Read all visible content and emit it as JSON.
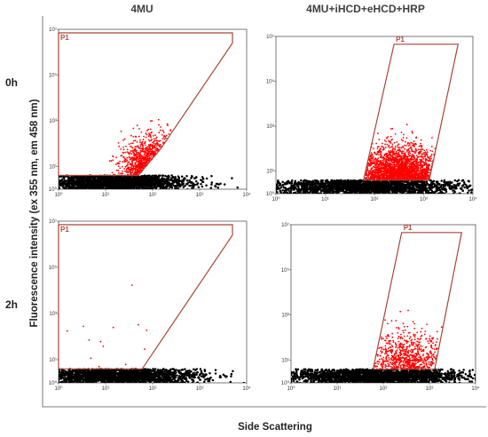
{
  "figure": {
    "columns": [
      "4MU",
      "4MU+iHCD+eHCD+HRP"
    ],
    "rows": [
      "0h",
      "2h"
    ],
    "ylabel": "Fluorescence intensity (ex 355 nm, em 458 nm)",
    "xlabel": "Side Scattering"
  },
  "chart_data": [
    {
      "type": "scatter",
      "condition": "4MU",
      "time": "0h",
      "xscale": "log",
      "yscale": "log",
      "xlim": [
        1,
        10000
      ],
      "ylim": [
        1,
        10000000
      ],
      "xticks": [
        "10⁰",
        "10¹",
        "10²",
        "10³",
        "10⁴"
      ],
      "yticks": [
        "10⁰",
        "10¹",
        "10³",
        "10⁵",
        "10⁷"
      ],
      "gate": {
        "label": "P1",
        "vertices": [
          [
            1,
            4
          ],
          [
            50,
            4
          ],
          [
            150,
            60
          ],
          [
            5000,
            2500000
          ],
          [
            5000,
            7000000
          ],
          [
            1,
            7000000
          ]
        ]
      },
      "populations": [
        {
          "name": "ungated",
          "color": "#000000",
          "xrange": [
            1,
            180
          ],
          "yrange": [
            1,
            4
          ],
          "density": "high"
        },
        {
          "name": "P1",
          "color": "#ff0000",
          "xrange": [
            40,
            400
          ],
          "yrange": [
            4,
            300
          ],
          "density": "medium"
        }
      ]
    },
    {
      "type": "scatter",
      "condition": "4MU+iHCD+eHCD+HRP",
      "time": "0h",
      "xscale": "log",
      "yscale": "log",
      "xlim": [
        1,
        10000
      ],
      "ylim": [
        1,
        10000000
      ],
      "xticks": [
        "10⁰",
        "10¹",
        "10²",
        "10³",
        "10⁴"
      ],
      "yticks": [
        "10⁰",
        "10¹",
        "10³",
        "10⁵",
        "10⁷"
      ],
      "gate": {
        "label": "P1",
        "vertices": [
          [
            60,
            4
          ],
          [
            1300,
            4
          ],
          [
            5000,
            4500000
          ],
          [
            250,
            4500000
          ]
        ]
      },
      "populations": [
        {
          "name": "ungated",
          "color": "#000000",
          "xrange": [
            2,
            1500
          ],
          "yrange": [
            1,
            4
          ],
          "density": "high"
        },
        {
          "name": "P1",
          "color": "#ff0000",
          "xrange": [
            80,
            1300
          ],
          "yrange": [
            4,
            250
          ],
          "density": "high"
        }
      ]
    },
    {
      "type": "scatter",
      "condition": "4MU",
      "time": "2h",
      "xscale": "log",
      "yscale": "log",
      "xlim": [
        1,
        10000
      ],
      "ylim": [
        1,
        10000000
      ],
      "xticks": [
        "10⁰",
        "10¹",
        "10²",
        "10³",
        "10⁴"
      ],
      "yticks": [
        "10⁰",
        "10¹",
        "10³",
        "10⁵",
        "10⁷"
      ],
      "gate": {
        "label": "P1",
        "vertices": [
          [
            1,
            4
          ],
          [
            60,
            4
          ],
          [
            5000,
            2500000
          ],
          [
            5000,
            7000000
          ],
          [
            1,
            7000000
          ]
        ]
      },
      "populations": [
        {
          "name": "ungated",
          "color": "#000000",
          "xrange": [
            1,
            300
          ],
          "yrange": [
            1,
            4
          ],
          "density": "high"
        },
        {
          "name": "P1",
          "color": "#ff0000",
          "xrange": [
            2,
            120
          ],
          "yrange": [
            4,
            1000
          ],
          "density": "sparse"
        }
      ]
    },
    {
      "type": "scatter",
      "condition": "4MU+iHCD+eHCD+HRP",
      "time": "2h",
      "xscale": "log",
      "yscale": "log",
      "xlim": [
        1,
        10000
      ],
      "ylim": [
        1,
        10000000
      ],
      "xticks": [
        "10⁰",
        "10¹",
        "10²",
        "10³",
        "10⁴"
      ],
      "yticks": [
        "10⁰",
        "10¹",
        "10³",
        "10⁵",
        "10⁷"
      ],
      "gate": {
        "label": "P1",
        "vertices": [
          [
            60,
            4
          ],
          [
            1300,
            4
          ],
          [
            5000,
            4500000
          ],
          [
            250,
            4500000
          ]
        ]
      },
      "populations": [
        {
          "name": "ungated",
          "color": "#000000",
          "xrange": [
            3,
            1500
          ],
          "yrange": [
            1,
            4
          ],
          "density": "high"
        },
        {
          "name": "P1",
          "color": "#ff0000",
          "xrange": [
            80,
            1300
          ],
          "yrange": [
            4,
            400
          ],
          "density": "medium"
        }
      ]
    }
  ]
}
